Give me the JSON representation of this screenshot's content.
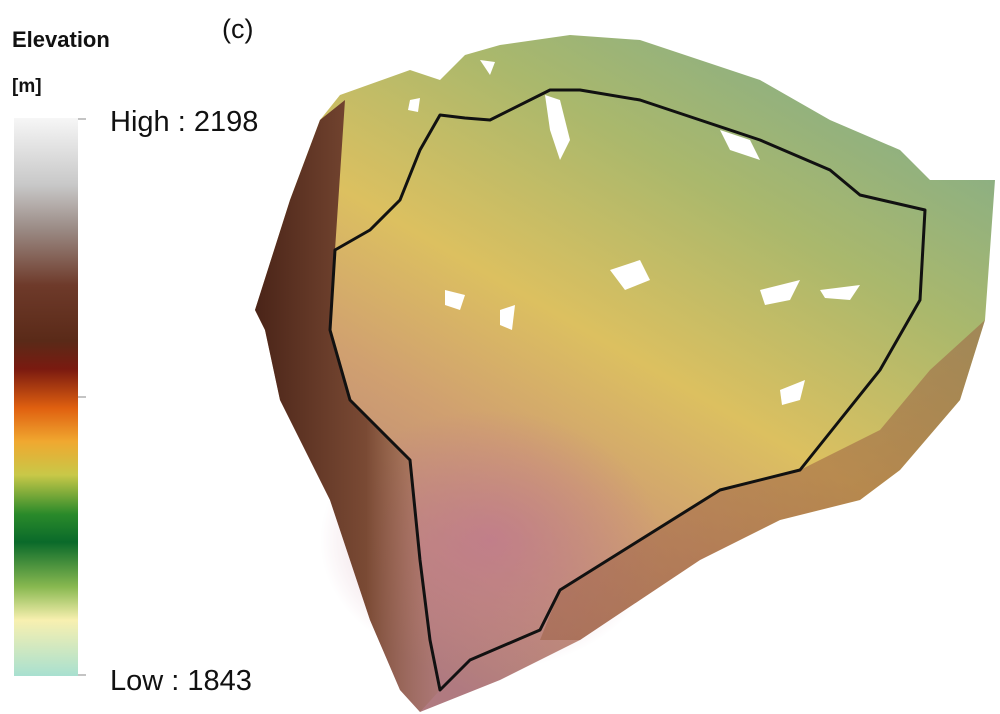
{
  "panel_label": "(c)",
  "legend": {
    "title": "Elevation",
    "unit": "[m]",
    "high_label": "High : 2198",
    "low_label": "Low : 1843"
  }
}
